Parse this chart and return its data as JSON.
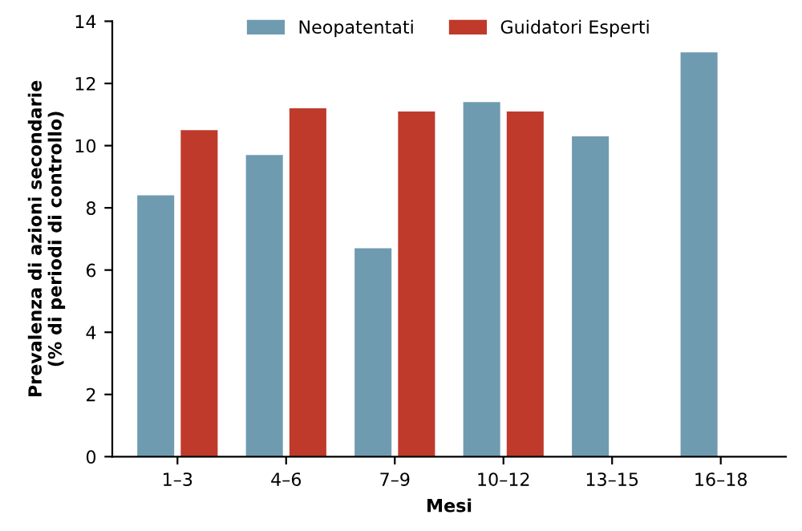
{
  "chart_data": {
    "type": "bar",
    "xlabel": "Mesi",
    "ylabel": "Prevalenza di azioni secondarie\n(% di periodi di controllo)",
    "categories": [
      "1–3",
      "4–6",
      "7–9",
      "10–12",
      "13–15",
      "16–18"
    ],
    "series": [
      {
        "name": "Neopatentati",
        "color": "#6f9bb0",
        "values": [
          8.4,
          9.7,
          6.7,
          11.4,
          10.3,
          13.0
        ]
      },
      {
        "name": "Guidatori Esperti",
        "color": "#bf3a2b",
        "values": [
          10.5,
          11.2,
          11.1,
          11.1,
          null,
          null
        ]
      }
    ],
    "ylim": [
      0,
      14
    ],
    "yticks": [
      0,
      2,
      4,
      6,
      8,
      10,
      12,
      14
    ],
    "grid": false,
    "legend": "top"
  }
}
